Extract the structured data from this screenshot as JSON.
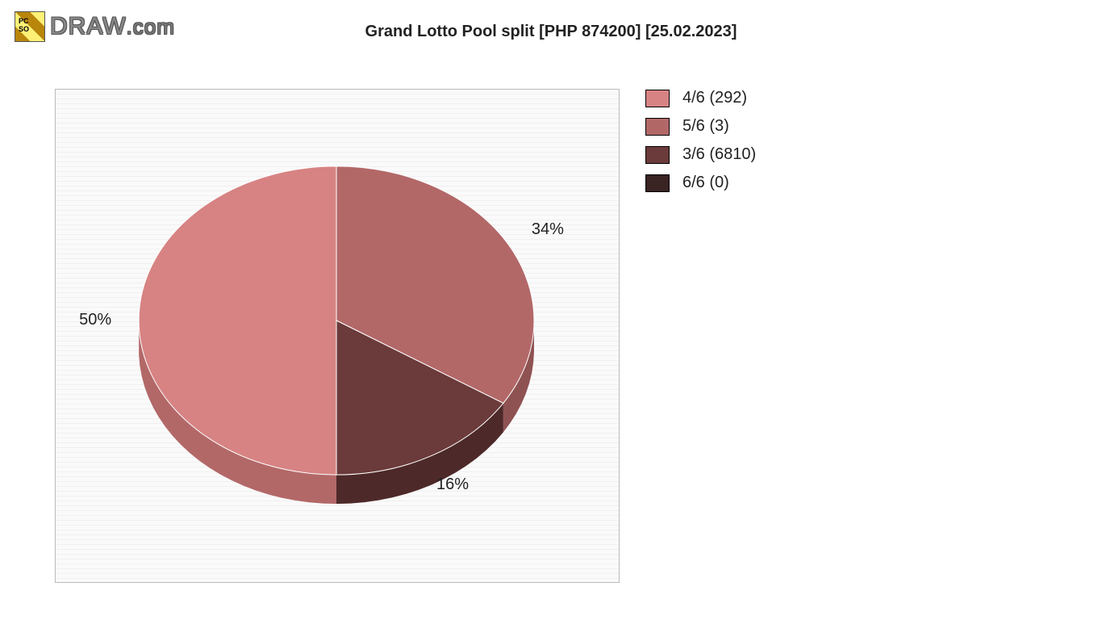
{
  "branding": {
    "site_text": "DRAW",
    "site_suffix": ".com"
  },
  "chart": {
    "type": "pie",
    "title": "Grand Lotto Pool split [PHP 874200] [25.02.2023]",
    "title_fontsize": 20,
    "title_color": "#222222",
    "background_color": "#ffffff",
    "plot_background_stripe_a": "#fafafa",
    "plot_background_stripe_b": "#f0f0f0",
    "plot_border_color": "#bbbbbb",
    "label_fontsize": 20,
    "label_color": "#222222",
    "pie_3d_depth": 36,
    "aspect_squash": 0.78,
    "start_angle_deg": 90,
    "direction": "clockwise",
    "slices": [
      {
        "key": "4/6",
        "count": 292,
        "percent": 50,
        "color": "#d78383",
        "side_color": "#b36868"
      },
      {
        "key": "5/6",
        "count": 3,
        "percent": 34,
        "color": "#b36868",
        "side_color": "#8f5252"
      },
      {
        "key": "3/6",
        "count": 6810,
        "percent": 16,
        "color": "#6b3a3a",
        "side_color": "#4e2929"
      },
      {
        "key": "6/6",
        "count": 0,
        "percent": 0,
        "color": "#3a2323",
        "side_color": "#2a1818"
      }
    ],
    "slice_labels": [
      {
        "text": "50%",
        "for": "4/6"
      },
      {
        "text": "34%",
        "for": "5/6"
      },
      {
        "text": "16%",
        "for": "3/6"
      }
    ],
    "legend": {
      "position": "right",
      "items": [
        {
          "label": "4/6 (292)",
          "color": "#d78383"
        },
        {
          "label": "5/6 (3)",
          "color": "#b36868"
        },
        {
          "label": "3/6 (6810)",
          "color": "#6b3a3a"
        },
        {
          "label": "6/6 (0)",
          "color": "#3a2323"
        }
      ]
    }
  }
}
